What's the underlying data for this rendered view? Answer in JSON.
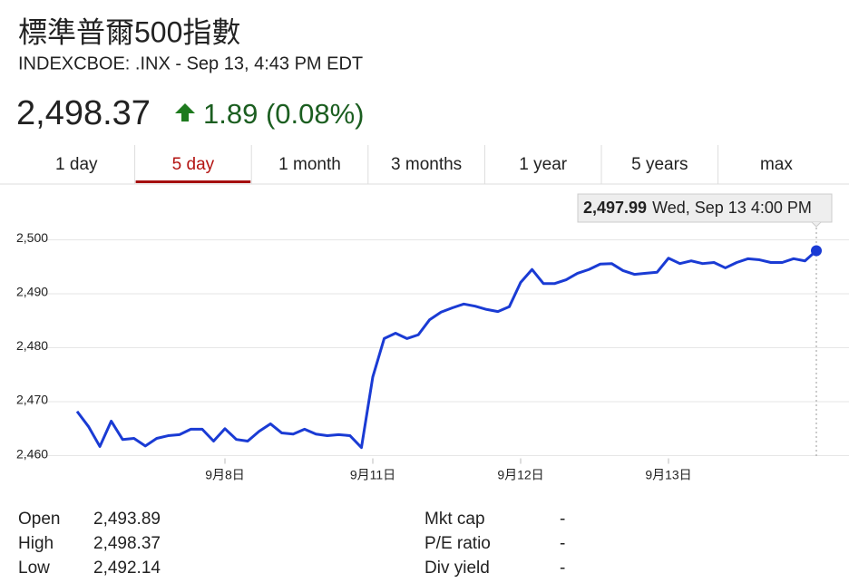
{
  "header": {
    "title": "標準普爾500指數",
    "subtitle": "INDEXCBOE: .INX - Sep 13, 4:43 PM EDT",
    "price": "2,498.37",
    "change": "1.89 (0.08%)"
  },
  "tabs": [
    "1 day",
    "5 day",
    "1 month",
    "3 months",
    "1 year",
    "5 years",
    "max"
  ],
  "active_tab": 1,
  "chart_data": {
    "type": "line",
    "color": "#1a3bd4",
    "grid": true,
    "values": [
      2468.2,
      2465.4,
      2461.7,
      2466.4,
      2463.0,
      2463.2,
      2461.8,
      2463.2,
      2463.7,
      2463.9,
      2464.9,
      2464.9,
      2462.7,
      2465.0,
      2463.0,
      2462.7,
      2464.5,
      2465.9,
      2464.2,
      2464.0,
      2464.9,
      2464.0,
      2463.7,
      2463.9,
      2463.7,
      2461.5,
      2474.6,
      2481.7,
      2482.7,
      2481.7,
      2482.4,
      2485.2,
      2486.6,
      2487.4,
      2488.1,
      2487.7,
      2487.1,
      2486.7,
      2487.6,
      2492.1,
      2494.5,
      2491.9,
      2491.9,
      2492.6,
      2493.8,
      2494.5,
      2495.5,
      2495.6,
      2494.3,
      2493.6,
      2493.8,
      2494.0,
      2496.6,
      2495.6,
      2496.1,
      2495.6,
      2495.8,
      2494.8,
      2495.8,
      2496.5,
      2496.3,
      2495.8,
      2495.8,
      2496.5,
      2496.1,
      2497.99
    ],
    "xlim": [
      0,
      65
    ],
    "xticks": [
      {
        "value": 13,
        "label": "9月8日"
      },
      {
        "value": 26,
        "label": "9月11日"
      },
      {
        "value": 39,
        "label": "9月12日"
      },
      {
        "value": 52,
        "label": "9月13日"
      }
    ],
    "ylim": [
      2459,
      2510
    ],
    "yticks": [
      {
        "value": 2460,
        "label": "2,460"
      },
      {
        "value": 2470,
        "label": "2,470"
      },
      {
        "value": 2480,
        "label": "2,480"
      },
      {
        "value": 2490,
        "label": "2,490"
      },
      {
        "value": 2500,
        "label": "2,500"
      }
    ],
    "annotation": {
      "value": 2497.99,
      "label": "2,497.99",
      "time": "Wed, Sep 13 4:00 PM"
    }
  },
  "stats_left": [
    [
      "Open",
      "2,493.89"
    ],
    [
      "High",
      "2,498.37"
    ],
    [
      "Low",
      "2,492.14"
    ]
  ],
  "stats_right": [
    [
      "Mkt cap",
      "-"
    ],
    [
      "P/E ratio",
      "-"
    ],
    [
      "Div yield",
      "-"
    ]
  ]
}
